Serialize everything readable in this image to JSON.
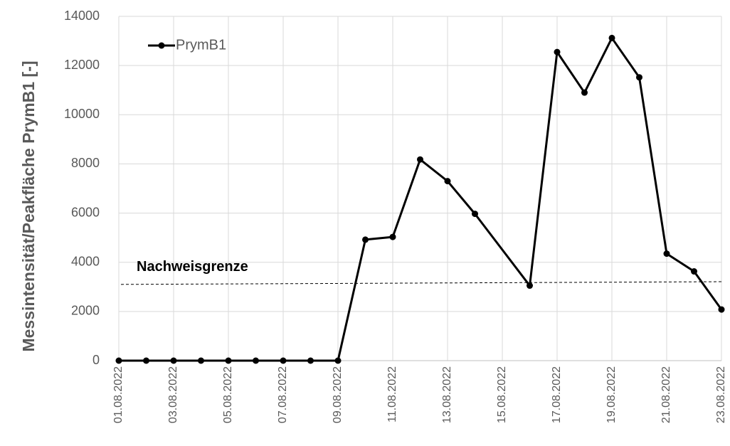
{
  "chart_data": {
    "type": "line",
    "ylabel": "Messintensität/Peakfläche  PrymB1 [-]",
    "x": [
      "01.08.2022",
      "02.08.2022",
      "03.08.2022",
      "04.08.2022",
      "05.08.2022",
      "06.08.2022",
      "07.08.2022",
      "08.08.2022",
      "09.08.2022",
      "10.08.2022",
      "11.08.2022",
      "12.08.2022",
      "13.08.2022",
      "14.08.2022",
      "16.08.2022",
      "17.08.2022",
      "18.08.2022",
      "19.08.2022",
      "20.08.2022",
      "21.08.2022",
      "22.08.2022",
      "23.08.2022"
    ],
    "series": [
      {
        "name": "PrymB1",
        "color": "#000000",
        "values": [
          0,
          0,
          0,
          0,
          0,
          0,
          0,
          0,
          0,
          4920,
          5030,
          8180,
          7300,
          5970,
          3050,
          12550,
          10900,
          13120,
          11520,
          4350,
          3630,
          2080
        ]
      }
    ],
    "xlim": [
      "01.08.2022",
      "23.08.2022"
    ],
    "xticks": [
      "01.08.2022",
      "03.08.2022",
      "05.08.2022",
      "07.08.2022",
      "09.08.2022",
      "11.08.2022",
      "13.08.2022",
      "15.08.2022",
      "17.08.2022",
      "19.08.2022",
      "21.08.2022",
      "23.08.2022"
    ],
    "ylim": [
      0,
      14000
    ],
    "yticks": [
      0,
      2000,
      4000,
      6000,
      8000,
      10000,
      12000,
      14000
    ],
    "grid": true,
    "legend": "upper left",
    "threshold": {
      "label": "Nachweisgrenze",
      "values": [
        3100,
        3210
      ]
    }
  }
}
